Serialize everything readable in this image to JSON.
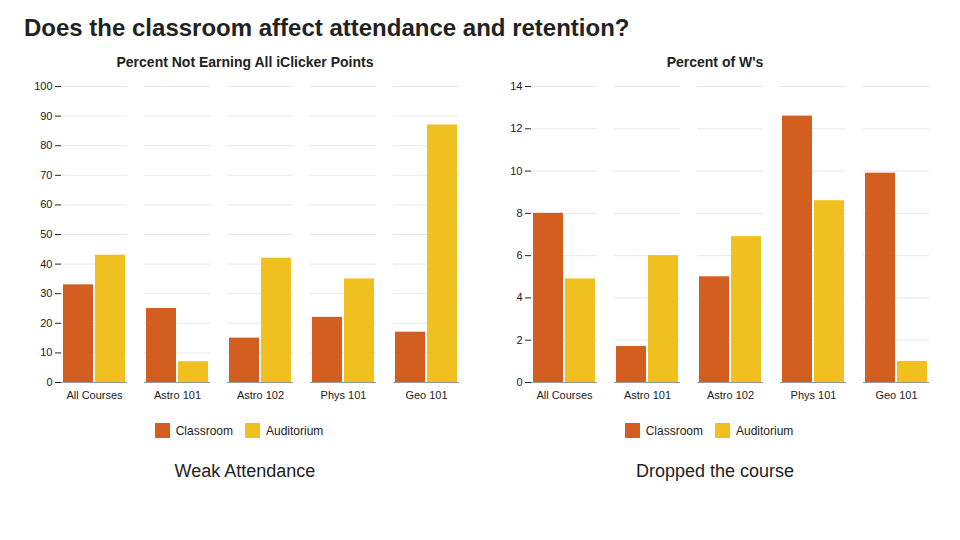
{
  "title": "Does the classroom affect attendance and retention?",
  "chart_data": [
    {
      "type": "bar",
      "title": "Percent Not Earning All iClicker Points",
      "categories": [
        "All Courses",
        "Astro 101",
        "Astro 102",
        "Phys 101",
        "Geo 101"
      ],
      "series": [
        {
          "name": "Classroom",
          "color": "#d45d20",
          "values": [
            33,
            25,
            15,
            22,
            17
          ]
        },
        {
          "name": "Auditorium",
          "color": "#f0c020",
          "values": [
            43,
            7,
            42,
            35,
            87
          ]
        }
      ],
      "ylim": [
        0,
        100
      ],
      "yticks": [
        0,
        10,
        20,
        30,
        40,
        50,
        60,
        70,
        80,
        90,
        100
      ],
      "grid": true,
      "legend": "bottom",
      "xlabel": "Weak Attendance"
    },
    {
      "type": "bar",
      "title": "Percent of W's",
      "categories": [
        "All Courses",
        "Astro 101",
        "Astro 102",
        "Phys 101",
        "Geo 101"
      ],
      "series": [
        {
          "name": "Classroom",
          "color": "#d45d20",
          "values": [
            8.0,
            1.7,
            5.0,
            12.6,
            9.9
          ]
        },
        {
          "name": "Auditorium",
          "color": "#f0c020",
          "values": [
            4.9,
            6.0,
            6.9,
            8.6,
            1.0
          ]
        }
      ],
      "ylim": [
        0,
        14
      ],
      "yticks": [
        0,
        2,
        4,
        6,
        8,
        10,
        12,
        14
      ],
      "grid": true,
      "legend": "bottom",
      "xlabel": "Dropped the course"
    }
  ]
}
